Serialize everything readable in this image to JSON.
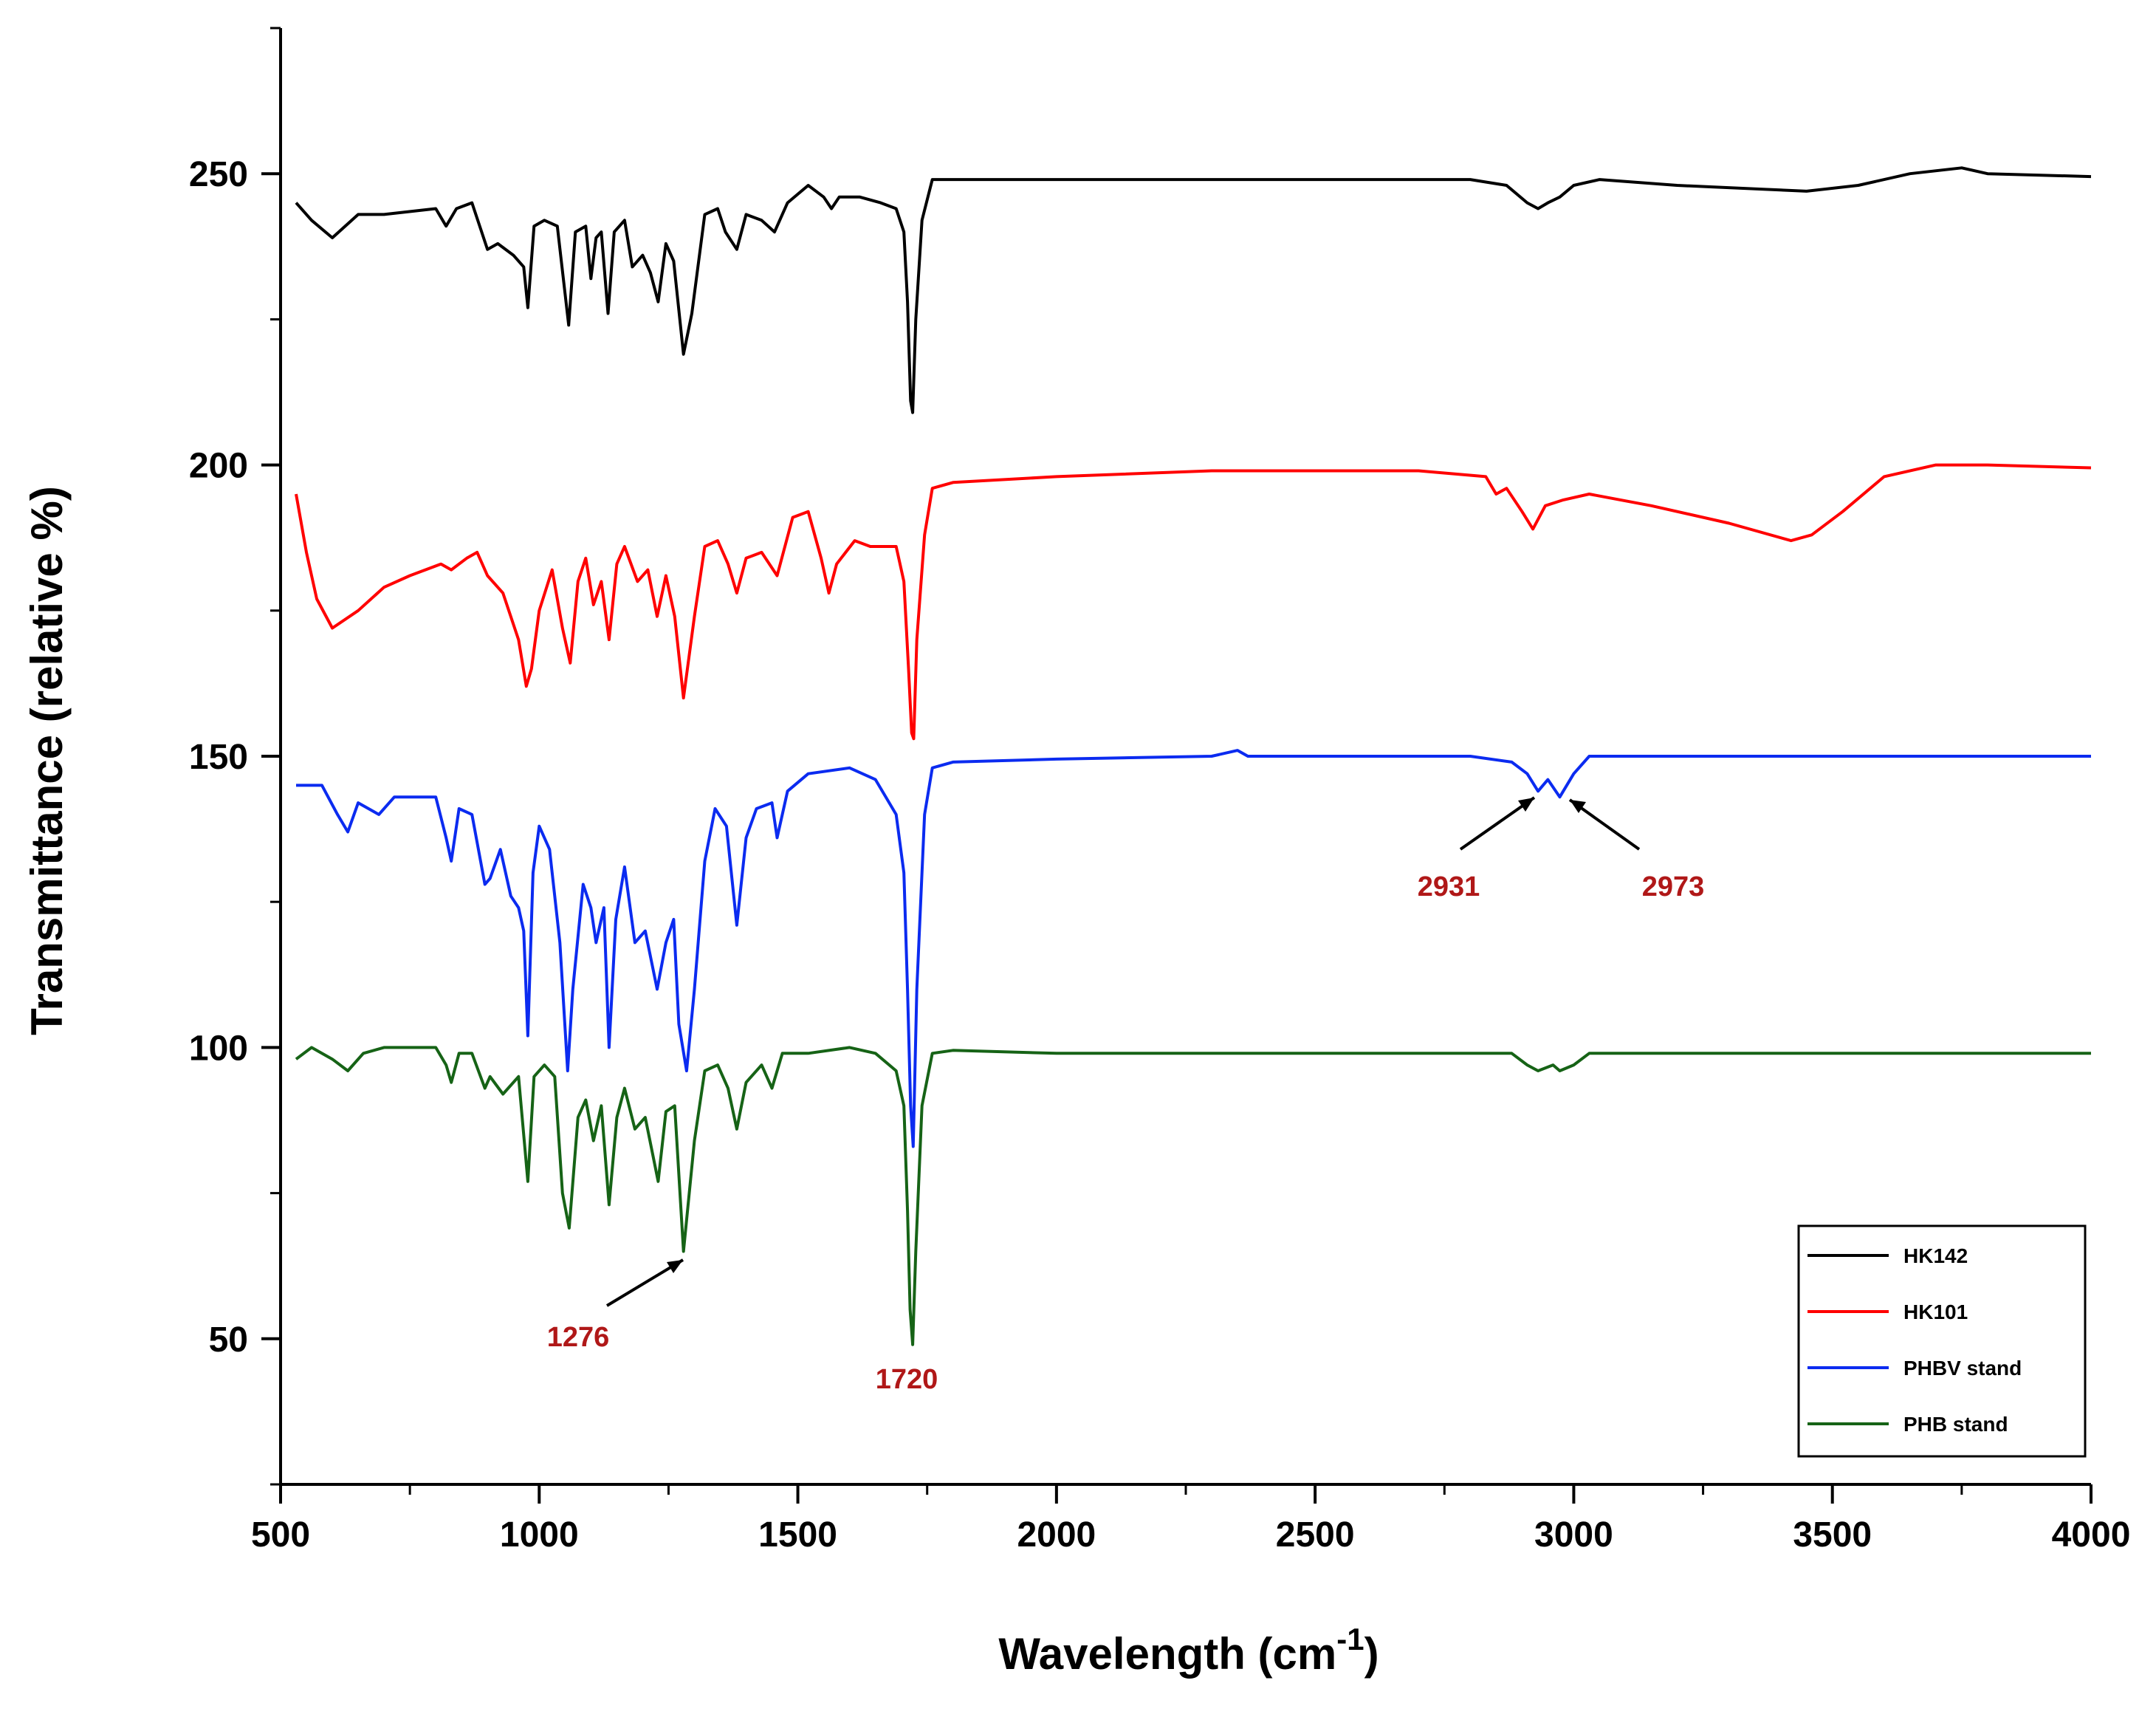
{
  "chart_data": {
    "type": "line",
    "title": "",
    "xlabel": "Wavelength (cm",
    "xlabel_superscript": "-1",
    "xlabel_suffix": ")",
    "ylabel": "Transmittance (relative %)",
    "xlim": [
      500,
      4000
    ],
    "ylim": [
      25,
      275
    ],
    "x_ticks": [
      500,
      1000,
      1500,
      2000,
      2500,
      3000,
      3500,
      4000
    ],
    "x_tick_labels": [
      "500",
      "1000",
      "1500",
      "2000",
      "2500",
      "3000",
      "3500",
      "4000"
    ],
    "y_ticks": [
      50,
      100,
      150,
      200,
      250
    ],
    "y_tick_labels": [
      "50",
      "100",
      "150",
      "200",
      "250"
    ],
    "grid": false,
    "legend_position": "bottom-right",
    "series": [
      {
        "name": "HK142",
        "color": "#000000",
        "points": [
          [
            530,
            245
          ],
          [
            560,
            242
          ],
          [
            600,
            239
          ],
          [
            650,
            243
          ],
          [
            700,
            243
          ],
          [
            800,
            244
          ],
          [
            820,
            241
          ],
          [
            840,
            244
          ],
          [
            870,
            245
          ],
          [
            900,
            237
          ],
          [
            920,
            238
          ],
          [
            950,
            236
          ],
          [
            970,
            234
          ],
          [
            978,
            227
          ],
          [
            990,
            241
          ],
          [
            1010,
            242
          ],
          [
            1035,
            241
          ],
          [
            1057,
            224
          ],
          [
            1070,
            240
          ],
          [
            1090,
            241
          ],
          [
            1100,
            232
          ],
          [
            1110,
            239
          ],
          [
            1120,
            240
          ],
          [
            1133,
            226
          ],
          [
            1145,
            240
          ],
          [
            1165,
            242
          ],
          [
            1180,
            234
          ],
          [
            1200,
            236
          ],
          [
            1215,
            233
          ],
          [
            1230,
            228
          ],
          [
            1245,
            238
          ],
          [
            1260,
            235
          ],
          [
            1279,
            219
          ],
          [
            1295,
            226
          ],
          [
            1320,
            243
          ],
          [
            1345,
            244
          ],
          [
            1360,
            240
          ],
          [
            1382,
            237
          ],
          [
            1400,
            243
          ],
          [
            1430,
            242
          ],
          [
            1455,
            240
          ],
          [
            1480,
            245
          ],
          [
            1520,
            248
          ],
          [
            1550,
            246
          ],
          [
            1565,
            244
          ],
          [
            1580,
            246
          ],
          [
            1620,
            246
          ],
          [
            1660,
            245
          ],
          [
            1690,
            244
          ],
          [
            1705,
            240
          ],
          [
            1712,
            228
          ],
          [
            1718,
            211
          ],
          [
            1722,
            209
          ],
          [
            1728,
            225
          ],
          [
            1740,
            242
          ],
          [
            1760,
            249
          ],
          [
            1800,
            249
          ],
          [
            2000,
            249
          ],
          [
            2500,
            249
          ],
          [
            2800,
            249
          ],
          [
            2870,
            248
          ],
          [
            2910,
            245
          ],
          [
            2931,
            244
          ],
          [
            2950,
            245
          ],
          [
            2973,
            246
          ],
          [
            3000,
            248
          ],
          [
            3050,
            249
          ],
          [
            3200,
            248
          ],
          [
            3450,
            247
          ],
          [
            3550,
            248
          ],
          [
            3650,
            250
          ],
          [
            3750,
            251
          ],
          [
            3800,
            250
          ],
          [
            4000,
            249.5
          ]
        ]
      },
      {
        "name": "HK101",
        "color": "#ff0000",
        "points": [
          [
            530,
            195
          ],
          [
            550,
            185
          ],
          [
            570,
            177
          ],
          [
            600,
            172
          ],
          [
            650,
            175
          ],
          [
            700,
            179
          ],
          [
            750,
            181
          ],
          [
            810,
            183
          ],
          [
            830,
            182
          ],
          [
            860,
            184
          ],
          [
            880,
            185
          ],
          [
            900,
            181
          ],
          [
            930,
            178
          ],
          [
            960,
            170
          ],
          [
            975,
            162
          ],
          [
            985,
            165
          ],
          [
            1000,
            175
          ],
          [
            1025,
            182
          ],
          [
            1045,
            172
          ],
          [
            1060,
            166
          ],
          [
            1075,
            180
          ],
          [
            1090,
            184
          ],
          [
            1105,
            176
          ],
          [
            1120,
            180
          ],
          [
            1135,
            170
          ],
          [
            1150,
            183
          ],
          [
            1165,
            186
          ],
          [
            1190,
            180
          ],
          [
            1210,
            182
          ],
          [
            1228,
            174
          ],
          [
            1245,
            181
          ],
          [
            1262,
            174
          ],
          [
            1279,
            160
          ],
          [
            1300,
            174
          ],
          [
            1320,
            186
          ],
          [
            1345,
            187
          ],
          [
            1365,
            183
          ],
          [
            1382,
            178
          ],
          [
            1400,
            184
          ],
          [
            1430,
            185
          ],
          [
            1460,
            181
          ],
          [
            1490,
            191
          ],
          [
            1520,
            192
          ],
          [
            1545,
            184
          ],
          [
            1560,
            178
          ],
          [
            1575,
            183
          ],
          [
            1610,
            187
          ],
          [
            1640,
            186
          ],
          [
            1690,
            186
          ],
          [
            1705,
            180
          ],
          [
            1714,
            165
          ],
          [
            1720,
            154
          ],
          [
            1724,
            153
          ],
          [
            1730,
            170
          ],
          [
            1745,
            188
          ],
          [
            1760,
            196
          ],
          [
            1800,
            197
          ],
          [
            2000,
            198
          ],
          [
            2300,
            199
          ],
          [
            2700,
            199
          ],
          [
            2830,
            198
          ],
          [
            2850,
            195
          ],
          [
            2870,
            196
          ],
          [
            2900,
            192
          ],
          [
            2921,
            189
          ],
          [
            2945,
            193
          ],
          [
            2980,
            194
          ],
          [
            3030,
            195
          ],
          [
            3150,
            193
          ],
          [
            3300,
            190
          ],
          [
            3420,
            187
          ],
          [
            3460,
            188
          ],
          [
            3520,
            192
          ],
          [
            3600,
            198
          ],
          [
            3700,
            200
          ],
          [
            3800,
            200
          ],
          [
            4000,
            199.5
          ]
        ]
      },
      {
        "name": "PHBV stand",
        "color": "#0b2bf0",
        "points": [
          [
            530,
            145
          ],
          [
            580,
            145
          ],
          [
            610,
            140
          ],
          [
            630,
            137
          ],
          [
            650,
            142
          ],
          [
            690,
            140
          ],
          [
            720,
            143
          ],
          [
            800,
            143
          ],
          [
            820,
            136
          ],
          [
            830,
            132
          ],
          [
            845,
            141
          ],
          [
            870,
            140
          ],
          [
            895,
            128
          ],
          [
            905,
            129
          ],
          [
            925,
            134
          ],
          [
            945,
            126
          ],
          [
            960,
            124
          ],
          [
            970,
            120
          ],
          [
            978,
            102
          ],
          [
            988,
            130
          ],
          [
            1000,
            138
          ],
          [
            1020,
            134
          ],
          [
            1040,
            118
          ],
          [
            1055,
            96
          ],
          [
            1065,
            110
          ],
          [
            1085,
            128
          ],
          [
            1100,
            124
          ],
          [
            1110,
            118
          ],
          [
            1125,
            124
          ],
          [
            1135,
            100
          ],
          [
            1148,
            122
          ],
          [
            1165,
            131
          ],
          [
            1185,
            118
          ],
          [
            1205,
            120
          ],
          [
            1228,
            110
          ],
          [
            1245,
            118
          ],
          [
            1260,
            122
          ],
          [
            1270,
            104
          ],
          [
            1285,
            96
          ],
          [
            1300,
            110
          ],
          [
            1320,
            132
          ],
          [
            1340,
            141
          ],
          [
            1362,
            138
          ],
          [
            1382,
            121
          ],
          [
            1400,
            136
          ],
          [
            1420,
            141
          ],
          [
            1450,
            142
          ],
          [
            1460,
            136
          ],
          [
            1480,
            144
          ],
          [
            1520,
            147
          ],
          [
            1600,
            148
          ],
          [
            1650,
            146
          ],
          [
            1690,
            140
          ],
          [
            1705,
            130
          ],
          [
            1712,
            110
          ],
          [
            1718,
            90
          ],
          [
            1723,
            83
          ],
          [
            1730,
            110
          ],
          [
            1745,
            140
          ],
          [
            1760,
            148
          ],
          [
            1800,
            149
          ],
          [
            2000,
            149.5
          ],
          [
            2300,
            150
          ],
          [
            2350,
            151
          ],
          [
            2370,
            150
          ],
          [
            2800,
            150
          ],
          [
            2880,
            149
          ],
          [
            2910,
            147
          ],
          [
            2931,
            144
          ],
          [
            2950,
            146
          ],
          [
            2973,
            143
          ],
          [
            3000,
            147
          ],
          [
            3030,
            150
          ],
          [
            3400,
            150
          ],
          [
            4000,
            150
          ]
        ]
      },
      {
        "name": "PHB stand",
        "color": "#166316",
        "points": [
          [
            530,
            98
          ],
          [
            560,
            100
          ],
          [
            600,
            98
          ],
          [
            630,
            96
          ],
          [
            660,
            99
          ],
          [
            700,
            100
          ],
          [
            800,
            100
          ],
          [
            820,
            97
          ],
          [
            830,
            94
          ],
          [
            845,
            99
          ],
          [
            870,
            99
          ],
          [
            895,
            93
          ],
          [
            905,
            95
          ],
          [
            930,
            92
          ],
          [
            960,
            95
          ],
          [
            978,
            77
          ],
          [
            990,
            95
          ],
          [
            1010,
            97
          ],
          [
            1030,
            95
          ],
          [
            1045,
            75
          ],
          [
            1058,
            69
          ],
          [
            1075,
            88
          ],
          [
            1090,
            91
          ],
          [
            1105,
            84
          ],
          [
            1120,
            90
          ],
          [
            1135,
            73
          ],
          [
            1150,
            88
          ],
          [
            1165,
            93
          ],
          [
            1185,
            86
          ],
          [
            1205,
            88
          ],
          [
            1230,
            77
          ],
          [
            1245,
            89
          ],
          [
            1262,
            90
          ],
          [
            1279,
            65
          ],
          [
            1300,
            84
          ],
          [
            1320,
            96
          ],
          [
            1345,
            97
          ],
          [
            1365,
            93
          ],
          [
            1382,
            86
          ],
          [
            1400,
            94
          ],
          [
            1430,
            97
          ],
          [
            1450,
            93
          ],
          [
            1470,
            99
          ],
          [
            1520,
            99
          ],
          [
            1600,
            100
          ],
          [
            1650,
            99
          ],
          [
            1690,
            96
          ],
          [
            1705,
            90
          ],
          [
            1712,
            72
          ],
          [
            1717,
            55
          ],
          [
            1722,
            49
          ],
          [
            1728,
            65
          ],
          [
            1740,
            90
          ],
          [
            1760,
            99
          ],
          [
            1800,
            99.5
          ],
          [
            2000,
            99
          ],
          [
            2500,
            99
          ],
          [
            2880,
            99
          ],
          [
            2910,
            97
          ],
          [
            2931,
            96
          ],
          [
            2960,
            97
          ],
          [
            2973,
            96
          ],
          [
            3000,
            97
          ],
          [
            3030,
            99
          ],
          [
            3500,
            99
          ],
          [
            4000,
            99
          ]
        ]
      }
    ],
    "annotations": [
      {
        "label": "1276",
        "x": 1276
      },
      {
        "label": "1720",
        "x": 1720
      },
      {
        "label": "2931",
        "x": 2931
      },
      {
        "label": "2973",
        "x": 2973
      }
    ]
  }
}
